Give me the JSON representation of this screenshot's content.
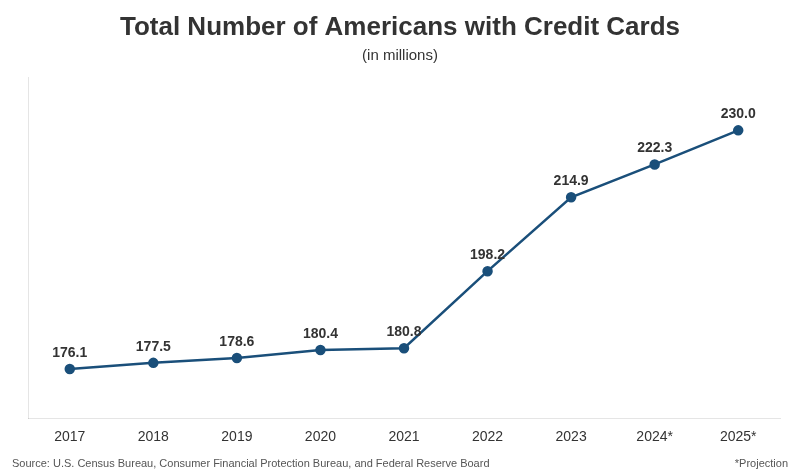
{
  "chart_data": {
    "type": "line",
    "title": "Total Number of Americans with Credit Cards",
    "subtitle": "(in millions)",
    "categories": [
      "2017",
      "2018",
      "2019",
      "2020",
      "2021",
      "2022",
      "2023",
      "2024*",
      "2025*"
    ],
    "values": [
      176.1,
      177.5,
      178.6,
      180.4,
      180.8,
      198.2,
      214.9,
      222.3,
      230.0
    ],
    "value_labels": [
      "176.1",
      "177.5",
      "178.6",
      "180.4",
      "180.8",
      "198.2",
      "214.9",
      "222.3",
      "230.0"
    ],
    "data_labels": true,
    "color": "#1a4f7a",
    "marker": "circle",
    "ylim": [
      165,
      242
    ],
    "grid": false,
    "tick_labels": "x",
    "annotations": [
      "Source: U.S. Census Bureau, Consumer Financial Protection Bureau, and Federal Reserve Board",
      "*Projection"
    ]
  }
}
